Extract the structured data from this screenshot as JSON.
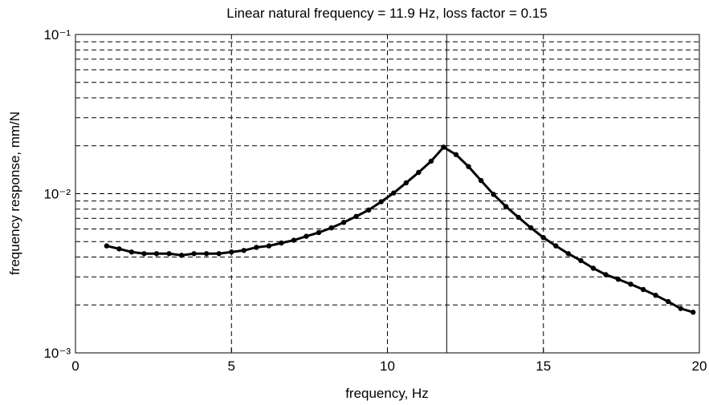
{
  "chart_data": {
    "type": "line",
    "title": "Linear natural frequency = 11.9 Hz, loss factor = 0.15",
    "xlabel": "frequency, Hz",
    "ylabel": "frequency response, mm/N",
    "xlim": [
      0,
      20
    ],
    "xticks": [
      0,
      5,
      10,
      15,
      20
    ],
    "ylim": [
      0.001,
      0.1
    ],
    "yticks": [
      {
        "value": 0.001,
        "label": "10⁻³"
      },
      {
        "value": 0.01,
        "label": "10⁻²"
      },
      {
        "value": 0.1,
        "label": "10⁻¹"
      }
    ],
    "log_y": true,
    "grid": true,
    "natural_frequency_line": 11.9,
    "series": [
      {
        "color": "#000000",
        "x": [
          1.0,
          1.4,
          1.8,
          2.2,
          2.6,
          3.0,
          3.4,
          3.8,
          4.2,
          4.6,
          5.0,
          5.4,
          5.8,
          6.2,
          6.6,
          7.0,
          7.4,
          7.8,
          8.2,
          8.6,
          9.0,
          9.4,
          9.8,
          10.2,
          10.6,
          11.0,
          11.4,
          11.8,
          12.2,
          12.6,
          13.0,
          13.4,
          13.8,
          14.2,
          14.6,
          15.0,
          15.4,
          15.8,
          16.2,
          16.6,
          17.0,
          17.4,
          17.8,
          18.2,
          18.6,
          19.0,
          19.4,
          19.8
        ],
        "values": [
          0.0047,
          0.0045,
          0.0043,
          0.0042,
          0.0042,
          0.0042,
          0.0041,
          0.0042,
          0.0042,
          0.0042,
          0.0043,
          0.0044,
          0.0046,
          0.0047,
          0.0049,
          0.0051,
          0.0054,
          0.0057,
          0.0061,
          0.0066,
          0.0072,
          0.0079,
          0.0089,
          0.0101,
          0.0117,
          0.0136,
          0.016,
          0.0196,
          0.0176,
          0.0148,
          0.0121,
          0.0099,
          0.0083,
          0.0071,
          0.0061,
          0.0053,
          0.0047,
          0.0042,
          0.0038,
          0.0034,
          0.0031,
          0.0029,
          0.0027,
          0.0025,
          0.0023,
          0.0021,
          0.0019,
          0.0018
        ]
      }
    ]
  }
}
